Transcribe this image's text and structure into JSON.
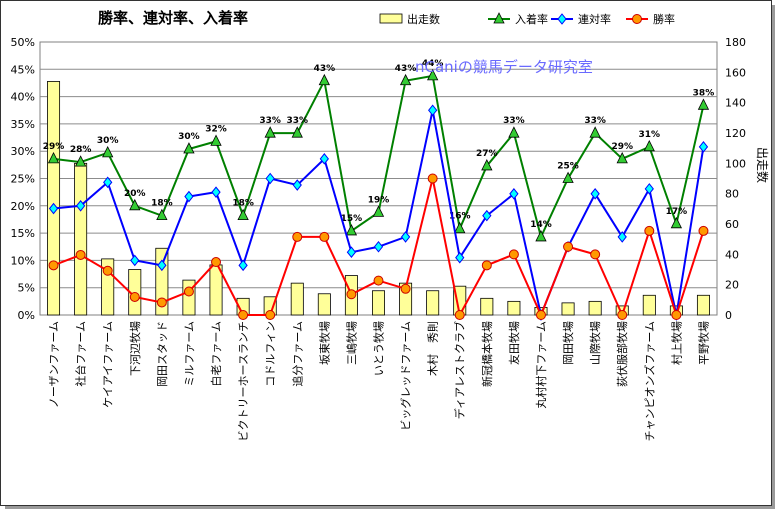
{
  "chart_data": {
    "type": "bar",
    "title": "勝率、連対率、入着率",
    "watermark": "nCaniの競馬データ研究室",
    "categories": [
      "ノーザンファーム",
      "社台ファーム",
      "ケイアイファーム",
      "下河辺牧場",
      "岡田スタッド",
      "ミルファーム",
      "白老ファーム",
      "ビクトリーホースランチ",
      "コドルフィン",
      "追分ファーム",
      "坂東牧場",
      "三嶋牧場",
      "いとう牧場",
      "ビッグレッドファーム",
      "木村　秀則",
      "ディアレストクラブ",
      "新冠橋本牧場",
      "友田牧場",
      "丸村村下ファーム",
      "岡田牧場",
      "山際牧場",
      "荻伏服部牧場",
      "チャンピオンズファーム",
      "村上牧場",
      "平野牧場"
    ],
    "y_left": {
      "ticks": [
        "0%",
        "5%",
        "10%",
        "15%",
        "20%",
        "25%",
        "30%",
        "35%",
        "40%",
        "45%",
        "50%"
      ],
      "min": 0,
      "max": 50
    },
    "y_right": {
      "label": "出走数",
      "ticks": [
        "0",
        "20",
        "40",
        "60",
        "80",
        "100",
        "120",
        "140",
        "160",
        "180"
      ],
      "min": 0,
      "max": 180
    },
    "series": [
      {
        "name": "出走数",
        "type": "bar",
        "axis": "right",
        "color": "#ffff99",
        "values": [
          154,
          100,
          37,
          30,
          44,
          23,
          33,
          11,
          12,
          21,
          14,
          26,
          16,
          21,
          16,
          19,
          11,
          9,
          5,
          8,
          9,
          6,
          13,
          6,
          13
        ]
      },
      {
        "name": "入着率",
        "type": "line",
        "axis": "left",
        "color": "#008000",
        "values": [
          28.6,
          28,
          29.7,
          20,
          18.2,
          30.4,
          31.8,
          18.2,
          33.3,
          33.3,
          42.9,
          15.4,
          18.8,
          42.9,
          43.8,
          15.8,
          27.3,
          33.3,
          14.3,
          25,
          33.3,
          28.6,
          30.8,
          16.7,
          38.4
        ],
        "labels": [
          "29%",
          "28%",
          "30%",
          "20%",
          "18%",
          "30%",
          "32%",
          "18%",
          "33%",
          "33%",
          "43%",
          "15%",
          "19%",
          "43%",
          "44%",
          "16%",
          "27%",
          "33%",
          "14%",
          "25%",
          "33%",
          "29%",
          "31%",
          "17%",
          "38%"
        ]
      },
      {
        "name": "連対率",
        "type": "line",
        "axis": "left",
        "color": "#0000ff",
        "values": [
          19.5,
          20,
          24.3,
          10,
          9.1,
          21.7,
          22.5,
          9.1,
          25,
          23.8,
          28.6,
          11.5,
          12.5,
          14.3,
          37.5,
          10.5,
          18.2,
          22.2,
          0,
          12.5,
          22.2,
          14.3,
          23.1,
          0,
          30.8
        ]
      },
      {
        "name": "勝率",
        "type": "line",
        "axis": "left",
        "color": "#ff0000",
        "values": [
          9.1,
          11,
          8.1,
          3.3,
          2.3,
          4.3,
          9.7,
          0,
          0,
          14.3,
          14.3,
          3.8,
          6.3,
          4.8,
          25,
          0,
          9.1,
          11.1,
          0,
          12.5,
          11.1,
          0,
          15.4,
          0,
          15.4
        ]
      }
    ],
    "legend": [
      "出走数",
      "入着率",
      "連対率",
      "勝率"
    ],
    "legend_position": "top-right",
    "grid": true
  }
}
